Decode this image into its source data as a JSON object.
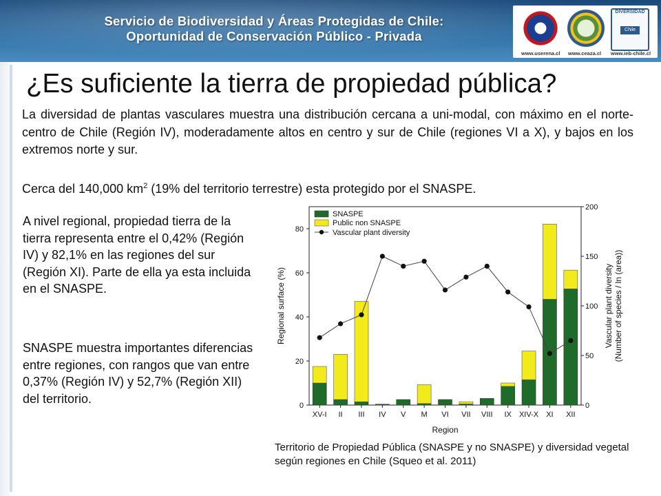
{
  "header": {
    "line1": "Servicio de Biodiversidad y Áreas Protegidas de Chile:",
    "line2": "Oportunidad de Conservación Público - Privada",
    "logo_urls": [
      "www.userena.cl",
      "www.ceaza.cl",
      "www.ieb-chile.cl"
    ],
    "logo_ieb_label": "DIVERSIDAD",
    "logo_ieb_chile": "Chile"
  },
  "title": "¿Es suficiente la tierra de propiedad pública?",
  "paragraph1": "La diversidad de plantas vasculares muestra una distribución cercana a uni-modal, con máximo en el norte-centro de Chile (Región IV), moderadamente altos en centro y sur de Chile (regiones VI a X), y bajos en los extremos norte y sur.",
  "paragraph2": {
    "before": "Cerca del 140,000 km",
    "sup": "2",
    "after": " (19% del territorio terrestre) esta protegido por el SNASPE."
  },
  "side_text1": "A nivel regional, propiedad tierra de la tierra representa entre el 0,42% (Región IV) y 82,1% en las regiones del sur (Región XI). Parte de ella ya esta incluida en el SNASPE.",
  "side_text2": "SNASPE muestra importantes diferencias entre regiones, con rangos que van entre 0,37% (Región IV) y 52,7% (Región XII) del territorio.",
  "caption": "Territorio de Propiedad Pública (SNASPE y no SNASPE) y diversidad vegetal según regiones en Chile (Squeo et al. 2011)",
  "chart_data": {
    "type": "bar",
    "stacked": true,
    "categories": [
      "XV-I",
      "II",
      "III",
      "IV",
      "V",
      "M",
      "VI",
      "VII",
      "VIII",
      "IX",
      "XIV-X",
      "XI",
      "XII"
    ],
    "series": [
      {
        "name": "SNASPE",
        "color": "#1f6b2a",
        "values": [
          10,
          2.5,
          1.5,
          0.37,
          2.5,
          0.7,
          2.5,
          0.5,
          3,
          8.5,
          11.5,
          48,
          52.7
        ]
      },
      {
        "name": "Public non SNASPE",
        "color": "#f2ea1a",
        "values": [
          7.5,
          20.5,
          45.5,
          0.05,
          0,
          8.5,
          0,
          1,
          0,
          1.5,
          13,
          34.1,
          8.5
        ]
      },
      {
        "name": "Vascular plant diversity",
        "type": "line",
        "axis": "right",
        "color": "#111111",
        "values": [
          68,
          82,
          91,
          150,
          140,
          145,
          116,
          129,
          140,
          114,
          99,
          52,
          65
        ]
      }
    ],
    "legend": [
      "SNASPE",
      "Public non SNASPE",
      "Vascular plant diversity"
    ],
    "legend_position": "top-left",
    "xlabel": "Region",
    "ylabel": "Regional surface (%)",
    "ylim": [
      0,
      90
    ],
    "yticks": [
      0,
      20,
      40,
      60,
      80
    ],
    "y2label_line1": "Vascular plant diversity",
    "y2label_line2": "(Number of species / ln (area))",
    "y2lim": [
      0,
      200
    ],
    "y2ticks": [
      0,
      50,
      100,
      150,
      200
    ]
  }
}
